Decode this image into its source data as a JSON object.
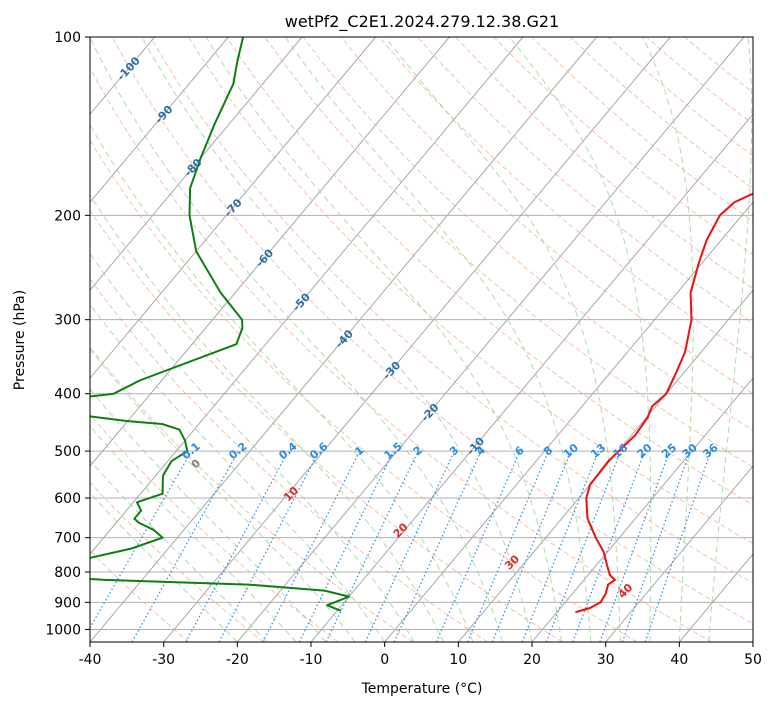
{
  "chart_data": {
    "type": "line",
    "title": "wetPf2_C2E1.2024.279.12.38.G21",
    "xlabel": "Temperature (°C)",
    "ylabel": "Pressure (hPa)",
    "xlim": [
      -40,
      50
    ],
    "ylim": [
      1050,
      100
    ],
    "y_scale": "log",
    "x_ticks": [
      -40,
      -30,
      -20,
      -10,
      0,
      10,
      20,
      30,
      40,
      50
    ],
    "y_ticks": [
      100,
      200,
      300,
      400,
      500,
      600,
      700,
      800,
      900,
      1000
    ],
    "grid": true,
    "skew": true,
    "series": [
      {
        "color": "#e8120f",
        "x": [
          22.5,
          24.0,
          24.8,
          24.5,
          23.8,
          24.2,
          23.0,
          21.5,
          19.5,
          16.8,
          13.5,
          11.0,
          10.0,
          9.8,
          10.5,
          10.2,
          9.5,
          10.0,
          9.0,
          7.8,
          5.0,
          1.8,
          -0.5,
          -2.0,
          -3.0,
          -2.5,
          0.0,
          5.0,
          3.5,
          3.2,
          3.8,
          5.5,
          7.5,
          9.0,
          10.0,
          12.0
        ],
        "y": [
          935,
          920,
          900,
          870,
          840,
          825,
          810,
          780,
          740,
          700,
          650,
          600,
          570,
          520,
          470,
          440,
          420,
          400,
          370,
          340,
          300,
          270,
          240,
          220,
          200,
          190,
          180,
          160,
          150,
          140,
          130,
          120,
          115,
          110,
          105,
          100
        ]
      },
      {
        "color": "#0d7f12",
        "x": [
          -9.5,
          -12.0,
          -11.0,
          -10.0,
          -14.0,
          -25.0,
          -45.0,
          -52.0,
          -58.0,
          -62.0,
          -57.0,
          -50.0,
          -45.0,
          -42.0,
          -44.0,
          -47.0,
          -48.0,
          -48.0,
          -49.5,
          -47.0,
          -48.0,
          -49.0,
          -49.5,
          -48.5,
          -50.0,
          -52.0,
          -55.0,
          -60.0,
          -78.0,
          -65.0,
          -63.0,
          -54.0,
          -55.0,
          -56.0,
          -62.0,
          -70.0,
          -75.0,
          -78.0,
          -80.0,
          -82.0,
          -84.0,
          -86.0,
          -88.0
        ],
        "y": [
          930,
          910,
          895,
          880,
          860,
          840,
          825,
          815,
          800,
          790,
          780,
          760,
          730,
          700,
          680,
          660,
          650,
          630,
          610,
          590,
          570,
          550,
          520,
          500,
          480,
          460,
          450,
          445,
          420,
          400,
          380,
          330,
          310,
          300,
          270,
          230,
          200,
          180,
          160,
          140,
          120,
          110,
          100
        ]
      }
    ],
    "isotherm_labels": [
      "-100",
      "-90",
      "-80",
      "-70",
      "-60",
      "-50",
      "-40",
      "-30",
      "-20",
      "-10"
    ],
    "dry_adiabat_labels": [
      "0",
      "10",
      "20",
      "30",
      "40"
    ],
    "mixing_ratio_labels": [
      "0.1",
      "0.2",
      "0.4",
      "0.6",
      "1",
      "1.5",
      "2",
      "3",
      "4",
      "6",
      "8",
      "10",
      "13",
      "16",
      "20",
      "25",
      "30",
      "36"
    ],
    "colors": {
      "temperature": "#e8120f",
      "dewpoint": "#0d7f12",
      "isotherm_label": "#2e6da4",
      "mixing_ratio": "#2a8ae6",
      "dry_adiabat": "#f4a58a",
      "moist_adiabat": "#9fd19a",
      "dry_adiabat_label": "#d62b2b",
      "zero_label": "#7f7f7f"
    }
  }
}
